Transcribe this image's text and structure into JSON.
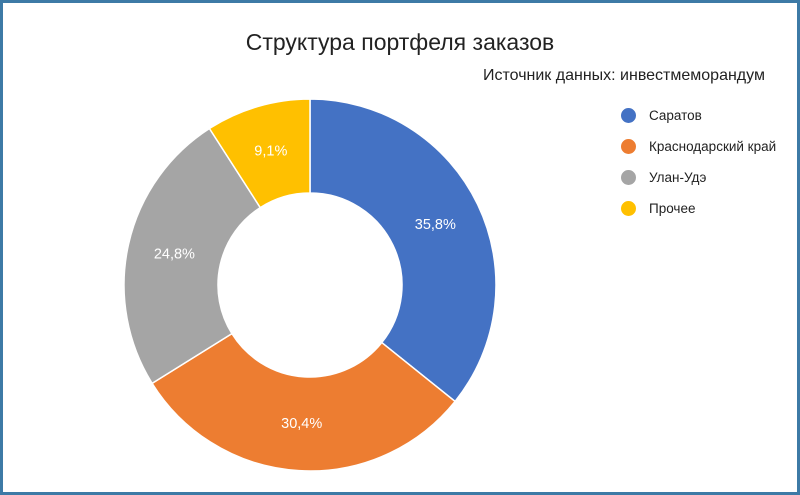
{
  "chart_data": {
    "type": "pie",
    "style": "donut",
    "title": "Структура портфеля заказов",
    "subtitle": "Источник данных: инвестмеморандум",
    "legend_position": "right",
    "slices": [
      {
        "name": "Саратов",
        "value": 35.8,
        "label": "35,8%",
        "color": "#4472c4"
      },
      {
        "name": "Краснодарский край",
        "value": 30.4,
        "label": "30,4%",
        "color": "#ed7d31"
      },
      {
        "name": "Улан-Удэ",
        "value": 24.8,
        "label": "24,8%",
        "color": "#a5a5a5"
      },
      {
        "name": "Прочее",
        "value": 9.1,
        "label": "9,1%",
        "color": "#ffc000"
      }
    ]
  }
}
